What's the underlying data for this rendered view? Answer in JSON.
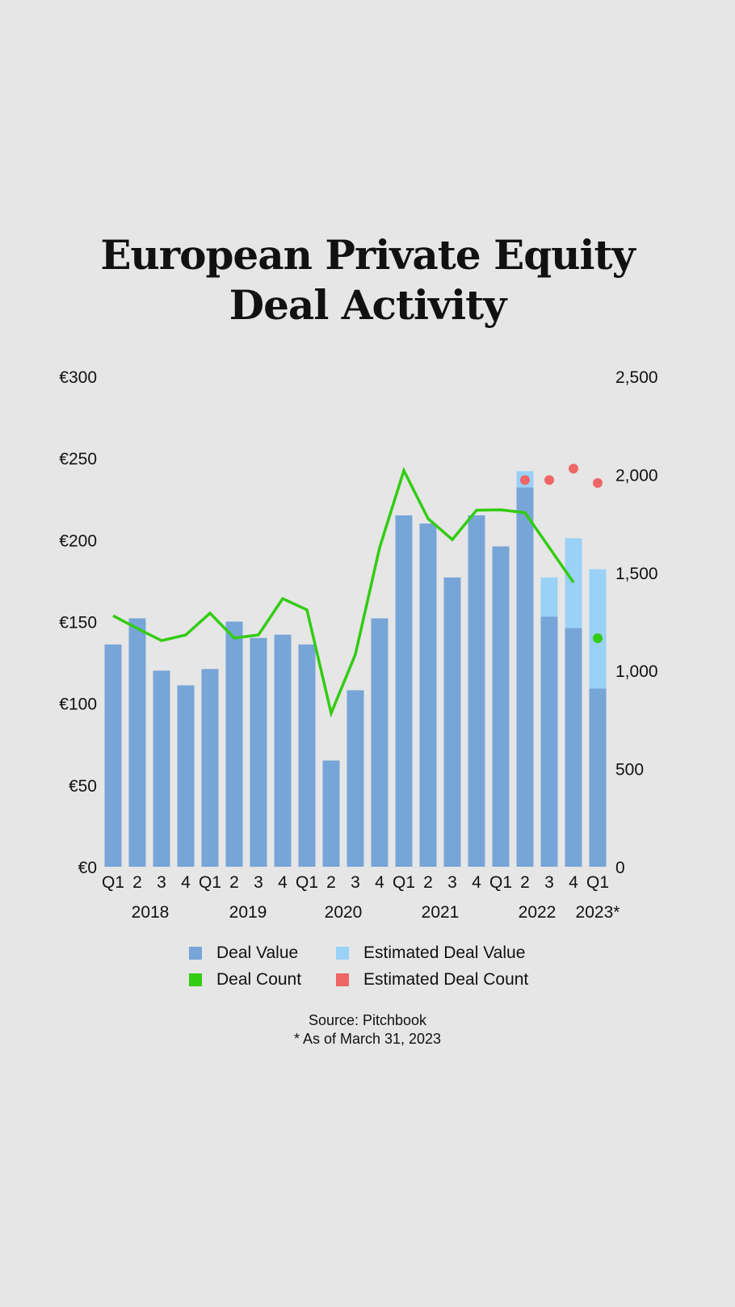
{
  "chart_data": {
    "type": "bar",
    "title_lines": [
      "European Private Equity",
      "Deal Activity"
    ],
    "categories": [
      "Q1",
      "2",
      "3",
      "4",
      "Q1",
      "2",
      "3",
      "4",
      "Q1",
      "2",
      "3",
      "4",
      "Q1",
      "2",
      "3",
      "4",
      "Q1",
      "2",
      "3",
      "4",
      "Q1"
    ],
    "year_labels": [
      "2018",
      "2019",
      "2020",
      "2021",
      "2022",
      "2023*"
    ],
    "left_axis": {
      "ticks": [
        "€0",
        "€50",
        "€100",
        "€150",
        "€200",
        "€250",
        "€300"
      ],
      "ylim": [
        0,
        300
      ]
    },
    "right_axis": {
      "ticks": [
        "0",
        "500",
        "1,000",
        "1,500",
        "2,000",
        "2,500"
      ],
      "ylim": [
        0,
        2500
      ]
    },
    "series": [
      {
        "name": "Deal Value",
        "type": "bar",
        "axis": "left",
        "color": "#77a5d8",
        "values": [
          136,
          152,
          120,
          111,
          121,
          150,
          140,
          142,
          136,
          65,
          108,
          152,
          215,
          210,
          177,
          215,
          196,
          232,
          153,
          146,
          109
        ]
      },
      {
        "name": "Estimated Deal Value",
        "type": "bar",
        "axis": "left",
        "color": "#99d1f7",
        "values": [
          null,
          null,
          null,
          null,
          null,
          null,
          null,
          null,
          null,
          null,
          null,
          null,
          null,
          null,
          null,
          null,
          null,
          242,
          177,
          201,
          182
        ]
      },
      {
        "name": "Deal Count",
        "type": "line",
        "axis": "right",
        "color": "#33cc11",
        "values": [
          1280,
          1215,
          1153,
          1182,
          1293,
          1166,
          1182,
          1367,
          1310,
          783,
          1083,
          1627,
          2020,
          1775,
          1668,
          1818,
          1820,
          1805,
          1628,
          1450,
          1165
        ]
      },
      {
        "name": "Estimated Deal Count",
        "type": "scatter",
        "axis": "right",
        "color": "#ee6666",
        "values": [
          null,
          null,
          null,
          null,
          null,
          null,
          null,
          null,
          null,
          null,
          null,
          null,
          null,
          null,
          null,
          null,
          null,
          1972,
          1972,
          2030,
          1957
        ]
      }
    ],
    "legend_placement": "bottom",
    "grid": false
  },
  "source": "Source: Pitchbook",
  "footnote": "* As of March 31, 2023"
}
